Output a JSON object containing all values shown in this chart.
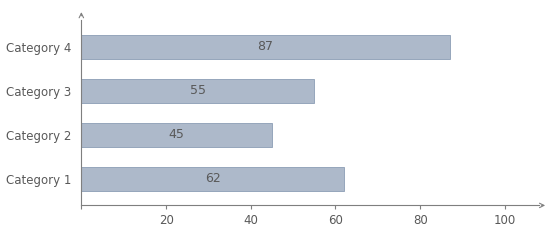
{
  "categories": [
    "Category 1",
    "Category 2",
    "Category 3",
    "Category 4"
  ],
  "values": [
    62,
    45,
    55,
    87
  ],
  "bar_color": "#adb9ca",
  "bar_edgecolor": "#8c9db5",
  "bar_labels": [
    62,
    45,
    55,
    87
  ],
  "xlim": [
    0,
    108
  ],
  "xticks": [
    0,
    20,
    40,
    60,
    80,
    100
  ],
  "label_fontsize": 9,
  "tick_fontsize": 8.5,
  "bar_height": 0.55,
  "background_color": "#ffffff",
  "axis_color": "#7f7f7f",
  "text_color": "#595959"
}
